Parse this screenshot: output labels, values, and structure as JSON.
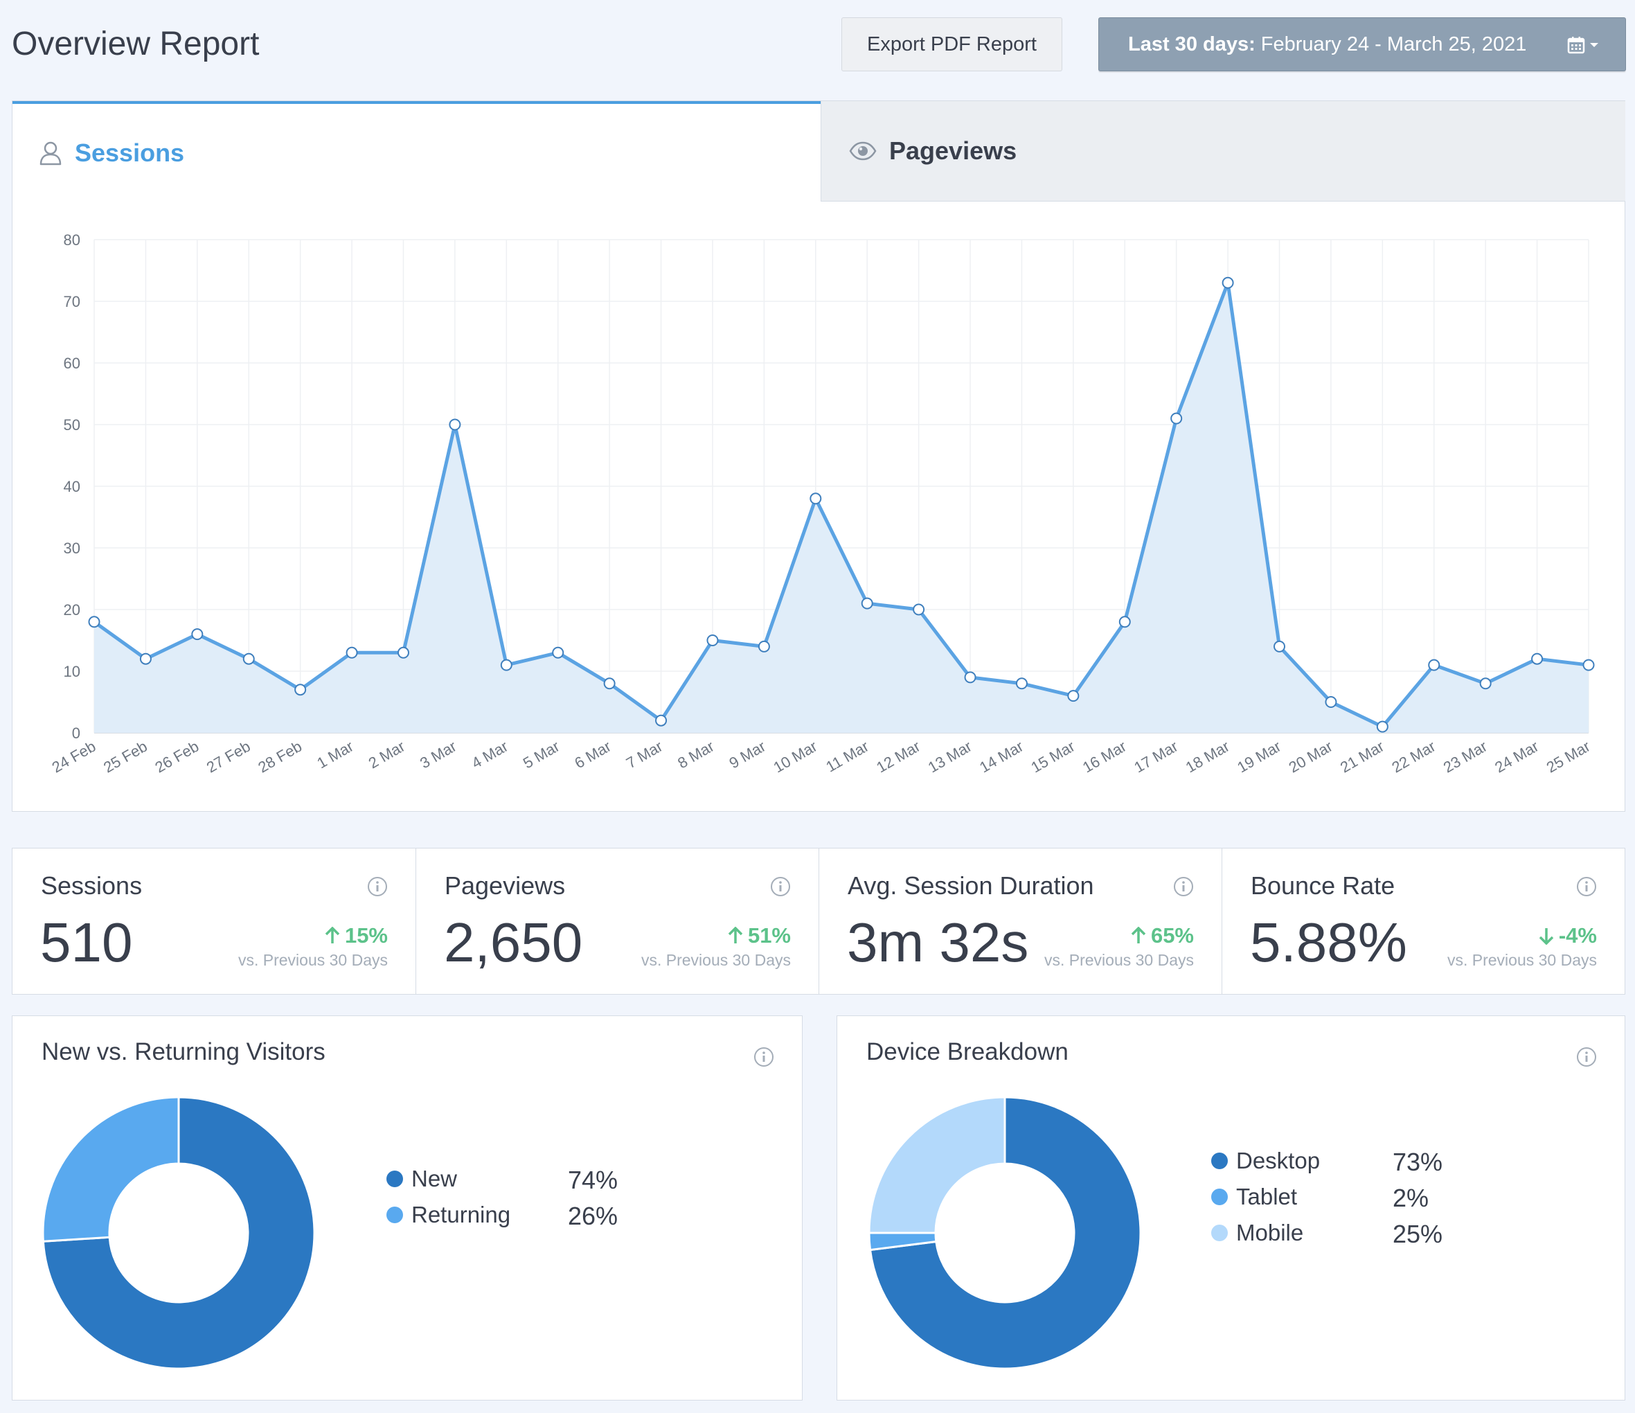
{
  "header": {
    "title": "Overview Report",
    "export_label": "Export PDF Report",
    "date_range_prefix": "Last 30 days:",
    "date_range_value": "February 24 - March 25, 2021"
  },
  "tabs": {
    "sessions_label": "Sessions",
    "pageviews_label": "Pageviews"
  },
  "chart_data": {
    "type": "area",
    "title": "Sessions",
    "xlabel": "",
    "ylabel": "",
    "ylim": [
      0,
      80
    ],
    "yticks": [
      0,
      10,
      20,
      30,
      40,
      50,
      60,
      70,
      80
    ],
    "grid": true,
    "categories": [
      "24 Feb",
      "25 Feb",
      "26 Feb",
      "27 Feb",
      "28 Feb",
      "1 Mar",
      "2 Mar",
      "3 Mar",
      "4 Mar",
      "5 Mar",
      "6 Mar",
      "7 Mar",
      "8 Mar",
      "9 Mar",
      "10 Mar",
      "11 Mar",
      "12 Mar",
      "13 Mar",
      "14 Mar",
      "15 Mar",
      "16 Mar",
      "17 Mar",
      "18 Mar",
      "19 Mar",
      "20 Mar",
      "21 Mar",
      "22 Mar",
      "23 Mar",
      "24 Mar",
      "25 Mar"
    ],
    "series": [
      {
        "name": "Sessions",
        "values": [
          18,
          12,
          16,
          12,
          7,
          13,
          13,
          50,
          11,
          13,
          8,
          2,
          15,
          14,
          38,
          21,
          20,
          9,
          8,
          6,
          18,
          51,
          73,
          14,
          5,
          1,
          11,
          8,
          12,
          11
        ]
      }
    ],
    "colors": {
      "line": "#5ba3e3",
      "fill": "#e0edf9"
    }
  },
  "metrics": [
    {
      "label": "Sessions",
      "value": "510",
      "change": "15%",
      "direction": "up",
      "compare": "vs. Previous 30 Days"
    },
    {
      "label": "Pageviews",
      "value": "2,650",
      "change": "51%",
      "direction": "up",
      "compare": "vs. Previous 30 Days"
    },
    {
      "label": "Avg. Session Duration",
      "value": "3m 32s",
      "change": "65%",
      "direction": "up",
      "compare": "vs. Previous 30 Days"
    },
    {
      "label": "Bounce Rate",
      "value": "5.88%",
      "change": "-4%",
      "direction": "down",
      "compare": "vs. Previous 30 Days"
    }
  ],
  "visitors": {
    "title": "New vs. Returning Visitors",
    "items": [
      {
        "label": "New",
        "pct": "74%",
        "value": 74,
        "color": "#2b78c2"
      },
      {
        "label": "Returning",
        "pct": "26%",
        "value": 26,
        "color": "#59a9ef"
      }
    ]
  },
  "devices": {
    "title": "Device Breakdown",
    "items": [
      {
        "label": "Desktop",
        "pct": "73%",
        "value": 73,
        "color": "#2b78c2"
      },
      {
        "label": "Tablet",
        "pct": "2%",
        "value": 2,
        "color": "#59a9ef"
      },
      {
        "label": "Mobile",
        "pct": "25%",
        "value": 25,
        "color": "#b3d9fb"
      }
    ]
  },
  "colors": {
    "accent": "#4a9ee0",
    "positive": "#5cc28a",
    "muted": "#a4adb8"
  }
}
